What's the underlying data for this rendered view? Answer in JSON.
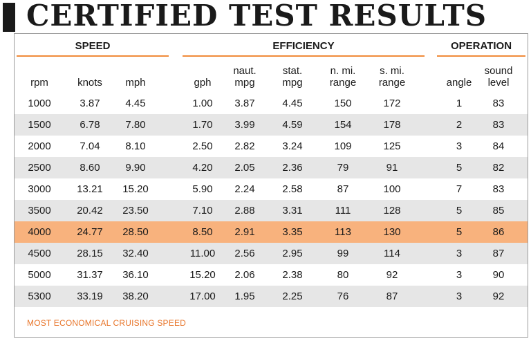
{
  "title": "CERTIFIED TEST RESULTS",
  "accent_color": "#f08a3a",
  "highlight_color": "#f8b27d",
  "groups": {
    "speed": "SPEED",
    "efficiency": "EFFICIENCY",
    "operation": "OPERATION"
  },
  "columns": [
    {
      "key": "rpm",
      "label": "rpm"
    },
    {
      "key": "knots",
      "label": "knots"
    },
    {
      "key": "mph",
      "label": "mph"
    },
    {
      "key": "gph",
      "label": "gph"
    },
    {
      "key": "naut_mpg",
      "label": "naut.\nmpg"
    },
    {
      "key": "stat_mpg",
      "label": "stat.\nmpg"
    },
    {
      "key": "nmi_range",
      "label": "n. mi.\nrange"
    },
    {
      "key": "smi_range",
      "label": "s. mi.\nrange"
    },
    {
      "key": "angle",
      "label": "angle"
    },
    {
      "key": "sound",
      "label": "sound\nlevel"
    }
  ],
  "rows": [
    [
      "1000",
      "3.87",
      "4.45",
      "1.00",
      "3.87",
      "4.45",
      "150",
      "172",
      "1",
      "83"
    ],
    [
      "1500",
      "6.78",
      "7.80",
      "1.70",
      "3.99",
      "4.59",
      "154",
      "178",
      "2",
      "83"
    ],
    [
      "2000",
      "7.04",
      "8.10",
      "2.50",
      "2.82",
      "3.24",
      "109",
      "125",
      "3",
      "84"
    ],
    [
      "2500",
      "8.60",
      "9.90",
      "4.20",
      "2.05",
      "2.36",
      "79",
      "91",
      "5",
      "82"
    ],
    [
      "3000",
      "13.21",
      "15.20",
      "5.90",
      "2.24",
      "2.58",
      "87",
      "100",
      "7",
      "83"
    ],
    [
      "3500",
      "20.42",
      "23.50",
      "7.10",
      "2.88",
      "3.31",
      "111",
      "128",
      "5",
      "85"
    ],
    [
      "4000",
      "24.77",
      "28.50",
      "8.50",
      "2.91",
      "3.35",
      "113",
      "130",
      "5",
      "86"
    ],
    [
      "4500",
      "28.15",
      "32.40",
      "11.00",
      "2.56",
      "2.95",
      "99",
      "114",
      "3",
      "87"
    ],
    [
      "5000",
      "31.37",
      "36.10",
      "15.20",
      "2.06",
      "2.38",
      "80",
      "92",
      "3",
      "90"
    ],
    [
      "5300",
      "33.19",
      "38.20",
      "17.00",
      "1.95",
      "2.25",
      "76",
      "87",
      "3",
      "92"
    ]
  ],
  "highlight_row": 6,
  "note": "MOST ECONOMICAL CRUISING SPEED"
}
